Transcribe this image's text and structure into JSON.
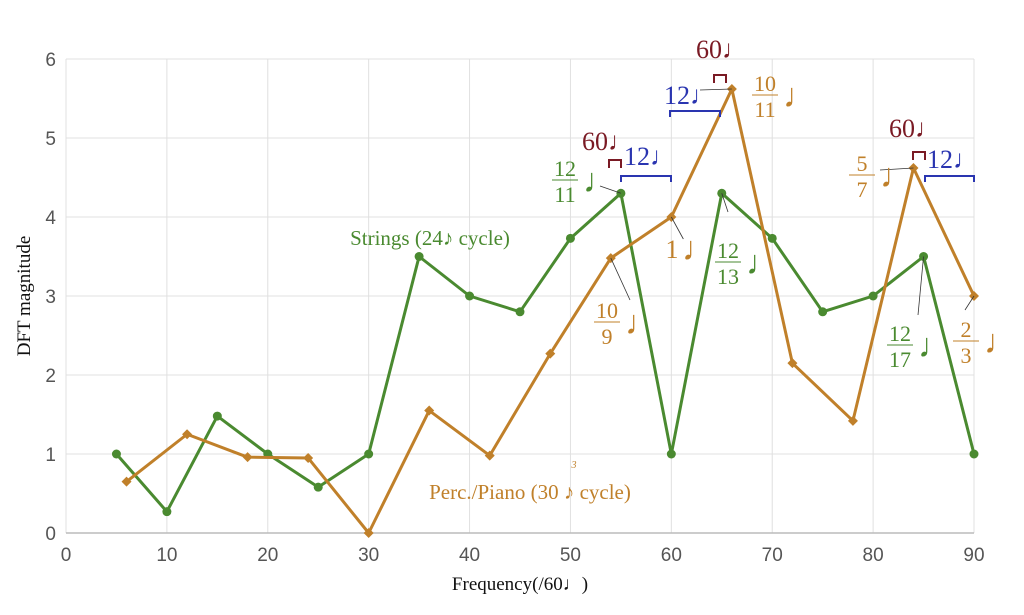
{
  "chart_data": {
    "type": "line",
    "xlabel": "Frequency(/60♩)",
    "ylabel": "DFT magnitude",
    "xlim": [
      0,
      90
    ],
    "ylim": [
      0,
      6
    ],
    "xticks": [
      "0",
      "10",
      "20",
      "30",
      "40",
      "50",
      "60",
      "70",
      "80",
      "90"
    ],
    "yticks": [
      "0",
      "1",
      "2",
      "3",
      "4",
      "5",
      "6"
    ],
    "grid": true,
    "series": [
      {
        "name": "Strings (24♪ cycle)",
        "color": "#4a8a30",
        "marker": "circle",
        "x": [
          5,
          10,
          15,
          20,
          25,
          30,
          35,
          40,
          45,
          50,
          55,
          60,
          65,
          70,
          75,
          80,
          85,
          90
        ],
        "y": [
          1.0,
          0.27,
          1.48,
          1.0,
          0.58,
          1.0,
          3.5,
          3.0,
          2.8,
          3.73,
          4.3,
          1.0,
          4.3,
          3.73,
          2.8,
          3.0,
          3.5,
          1.0
        ]
      },
      {
        "name": "Perc./Piano (30 ♪ cycle)",
        "name_tuplet": "3",
        "color": "#c0802a",
        "marker": "diamond",
        "x": [
          6,
          12,
          18,
          24,
          30,
          36,
          42,
          48,
          54,
          60,
          66,
          72,
          78,
          84,
          90
        ],
        "y": [
          0.65,
          1.25,
          0.96,
          0.95,
          0.0,
          1.55,
          0.98,
          2.27,
          3.48,
          4.0,
          5.62,
          2.15,
          1.42,
          4.62,
          3.0
        ]
      }
    ],
    "annotations": {
      "fractions": [
        {
          "num": "12",
          "den": "11",
          "note": "♩",
          "color": "#4a8a30",
          "x": 55,
          "y": 4.3
        },
        {
          "num": "10",
          "den": "11",
          "note": "♩",
          "color": "#c0802a",
          "x": 66,
          "y": 5.62
        },
        {
          "num": "1",
          "den": "",
          "note": "♩",
          "color": "#c0802a",
          "x": 60,
          "y": 4.0
        },
        {
          "num": "12",
          "den": "13",
          "note": "♩",
          "color": "#4a8a30",
          "x": 65,
          "y": 4.3
        },
        {
          "num": "10",
          "den": "9",
          "note": "♩",
          "color": "#c0802a",
          "x": 54,
          "y": 3.48
        },
        {
          "num": "5",
          "den": "7",
          "note": "♩",
          "color": "#c0802a",
          "x": 84,
          "y": 4.62
        },
        {
          "num": "12",
          "den": "17",
          "note": "♩",
          "color": "#4a8a30",
          "x": 85,
          "y": 3.5
        },
        {
          "num": "2",
          "den": "3",
          "note": "♩",
          "color": "#c0802a",
          "x": 90,
          "y": 3.0
        }
      ],
      "periods": [
        {
          "text": "60♩",
          "color": "#7a1a24"
        },
        {
          "text": "12♩",
          "color": "#2a35b0"
        }
      ]
    }
  }
}
